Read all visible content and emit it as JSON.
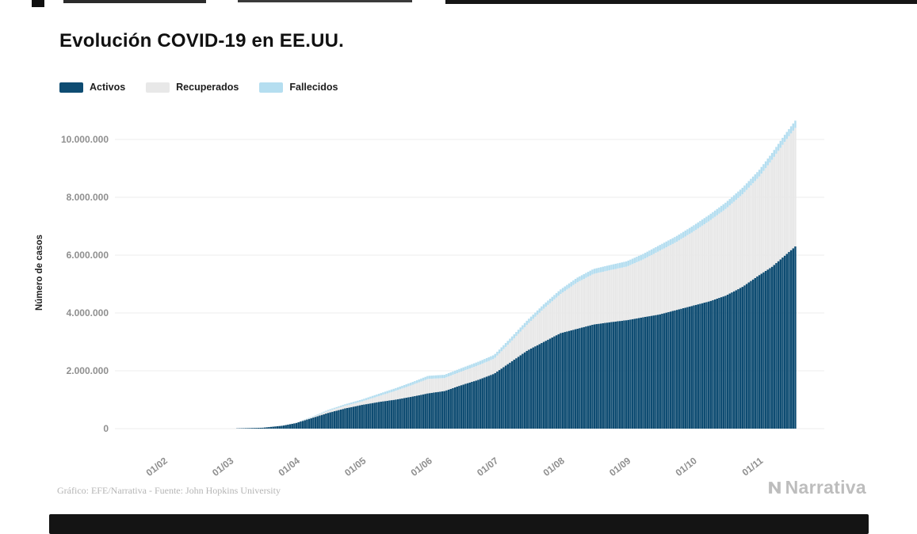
{
  "header": {
    "title": "Evolución COVID-19 en EE.UU."
  },
  "legend": {
    "items": [
      {
        "label": "Activos",
        "color": "#0e4c72"
      },
      {
        "label": "Recuperados",
        "color": "#e8e8e8"
      },
      {
        "label": "Fallecidos",
        "color": "#b5def0"
      }
    ]
  },
  "footer": {
    "source": "Gráfico: EFE/Narrativa - Fuente: John Hopkins University",
    "logo_text": "Narrativa"
  },
  "chart_data": {
    "type": "area",
    "variant": "stacked-daily-bars",
    "title": "Evolución COVID-19 en EE.UU.",
    "xlabel": "",
    "ylabel": "Número de casos",
    "grid": "horizontal",
    "legend_position": "top-left",
    "ylim": [
      0,
      10650000
    ],
    "y_ticks": [
      {
        "value": 0,
        "label": "0"
      },
      {
        "value": 2000000,
        "label": "2.000.000"
      },
      {
        "value": 4000000,
        "label": "4.000.000"
      },
      {
        "value": 6000000,
        "label": "6.000.000"
      },
      {
        "value": 8000000,
        "label": "8.000.000"
      },
      {
        "value": 10000000,
        "label": "10.000.000"
      }
    ],
    "x_ticks": [
      {
        "month": 0,
        "label": "01/02"
      },
      {
        "month": 1,
        "label": "01/03"
      },
      {
        "month": 2,
        "label": "01/04"
      },
      {
        "month": 3,
        "label": "01/05"
      },
      {
        "month": 4,
        "label": "01/06"
      },
      {
        "month": 5,
        "label": "01/07"
      },
      {
        "month": 6,
        "label": "01/08"
      },
      {
        "month": 7,
        "label": "01/09"
      },
      {
        "month": 8,
        "label": "01/10"
      },
      {
        "month": 9,
        "label": "01/11"
      }
    ],
    "series": [
      {
        "name": "Activos",
        "color": "#0e4c72"
      },
      {
        "name": "Recuperados",
        "color": "#e8e8e8"
      },
      {
        "name": "Fallecidos",
        "color": "#b5def0"
      }
    ],
    "points_format": [
      "month_from_feb",
      "activos",
      "recuperados",
      "fallecidos"
    ],
    "points": [
      [
        0.0,
        0,
        0,
        0
      ],
      [
        1.0,
        2000,
        100,
        60
      ],
      [
        1.5,
        30000,
        2000,
        1500
      ],
      [
        1.8,
        100000,
        5000,
        3000
      ],
      [
        2.0,
        190000,
        9000,
        5000
      ],
      [
        2.25,
        370000,
        30000,
        15000
      ],
      [
        2.5,
        550000,
        70000,
        35000
      ],
      [
        2.75,
        700000,
        95000,
        50000
      ],
      [
        3.0,
        820000,
        120000,
        65000
      ],
      [
        3.25,
        920000,
        200000,
        80000
      ],
      [
        3.5,
        1000000,
        300000,
        90000
      ],
      [
        3.75,
        1100000,
        400000,
        98000
      ],
      [
        4.0,
        1220000,
        500000,
        105000
      ],
      [
        4.25,
        1300000,
        450000,
        112000
      ],
      [
        4.5,
        1500000,
        470000,
        118000
      ],
      [
        4.75,
        1680000,
        500000,
        124000
      ],
      [
        5.0,
        1900000,
        520000,
        130000
      ],
      [
        5.25,
        2300000,
        700000,
        138000
      ],
      [
        5.5,
        2700000,
        900000,
        145000
      ],
      [
        5.75,
        3000000,
        1150000,
        150000
      ],
      [
        6.0,
        3300000,
        1350000,
        156000
      ],
      [
        6.25,
        3450000,
        1600000,
        163000
      ],
      [
        6.5,
        3600000,
        1750000,
        170000
      ],
      [
        6.75,
        3680000,
        1800000,
        177000
      ],
      [
        7.0,
        3750000,
        1850000,
        184000
      ],
      [
        7.25,
        3850000,
        2000000,
        190000
      ],
      [
        7.5,
        3950000,
        2200000,
        196000
      ],
      [
        7.75,
        4100000,
        2350000,
        200000
      ],
      [
        8.0,
        4250000,
        2550000,
        207000
      ],
      [
        8.25,
        4400000,
        2780000,
        213000
      ],
      [
        8.5,
        4600000,
        3000000,
        219000
      ],
      [
        8.75,
        4900000,
        3200000,
        225000
      ],
      [
        9.0,
        5300000,
        3400000,
        231000
      ],
      [
        9.2,
        5600000,
        3700000,
        237000
      ],
      [
        9.4,
        6000000,
        3950000,
        243000
      ],
      [
        9.55,
        6300000,
        4100000,
        250000
      ]
    ]
  }
}
